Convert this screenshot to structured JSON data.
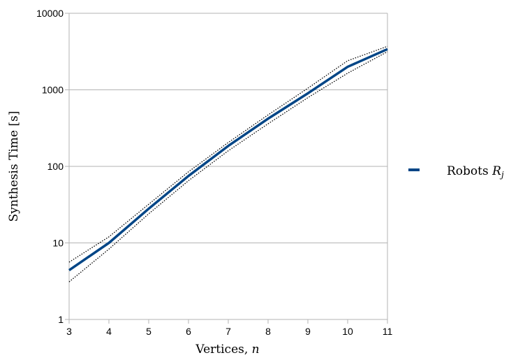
{
  "chart_data": {
    "type": "line",
    "title": "",
    "xlabel": "Vertices, ",
    "xlabel_var": "n",
    "ylabel": "Synthesis Time [s]",
    "x": [
      3,
      4,
      5,
      6,
      7,
      8,
      9,
      10,
      11
    ],
    "xlim": [
      3,
      11
    ],
    "ylim": [
      1,
      10000
    ],
    "yscale": "log",
    "x_ticks": [
      "3",
      "4",
      "5",
      "6",
      "7",
      "8",
      "9",
      "10",
      "11"
    ],
    "y_ticks": [
      {
        "value": 1,
        "label": "1"
      },
      {
        "value": 10,
        "label": "10"
      },
      {
        "value": 100,
        "label": "100"
      },
      {
        "value": 1000,
        "label": "1000"
      },
      {
        "value": 10000,
        "label": "10000"
      }
    ],
    "grid": true,
    "legend_position": "right",
    "series": [
      {
        "name": "Robots ",
        "name_var": "R",
        "name_sub": "j",
        "style": "solid",
        "color": "#004586",
        "values": [
          4.4,
          10,
          28,
          75,
          185,
          420,
          900,
          2000,
          3400
        ]
      },
      {
        "style": "dotted",
        "color": "#000000",
        "values": [
          5.6,
          12,
          32,
          85,
          205,
          470,
          1050,
          2400,
          3700
        ]
      },
      {
        "style": "dotted",
        "color": "#000000",
        "values": [
          3.1,
          8.3,
          24,
          65,
          160,
          360,
          790,
          1650,
          3150
        ]
      }
    ]
  }
}
